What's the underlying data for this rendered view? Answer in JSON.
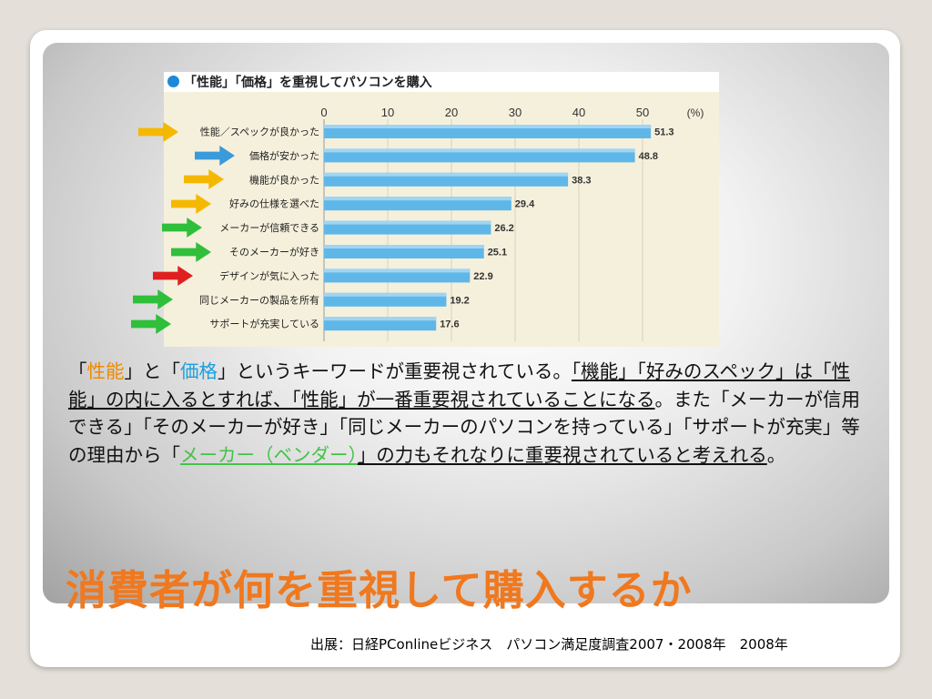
{
  "slide": {
    "title": "消費者が何を重視して購入するか",
    "source": "出展：日経PConlineビジネス　パソコン満足度調査2007・2008年　2008年"
  },
  "body_paragraph": {
    "q1_open": "「",
    "kw1": "性能",
    "q1_close_to": "」と「",
    "kw2": "価格",
    "part_a": "」というキーワードが重要視されている。",
    "part_b": "「機能」「好みのスペック」は「性能」の内に入るとすれば、「性能」が一番重要視されていることになる",
    "part_c": "。また「メーカーが信用できる」「そのメーカーが好き」「同じメーカーのパソコンを持っている」「サポートが充実」等の理由から「",
    "kw3": "メーカー（ベンダー）",
    "part_d": "」の力もそれなりに重要視されていると考えれる",
    "part_e": "。"
  },
  "colors": {
    "bar": "#5fb7e8",
    "arrow_yellow": "#f5b800",
    "arrow_blue": "#3b9ad9",
    "arrow_green": "#2fbf3a",
    "arrow_red": "#e02020"
  },
  "chart_data": {
    "type": "bar",
    "orientation": "horizontal",
    "title": "「性能」「価格」を重視してパソコンを購入",
    "unit": "(%)",
    "xlim": [
      0,
      55
    ],
    "ticks": [
      0,
      10,
      20,
      30,
      40,
      50
    ],
    "grid": true,
    "categories": [
      "性能／スペックが良かった",
      "価格が安かった",
      "機能が良かった",
      "好みの仕様を選べた",
      "メーカーが信頼できる",
      "そのメーカーが好き",
      "デザインが気に入った",
      "同じメーカーの製品を所有",
      "サポートが充実している"
    ],
    "values": [
      51.3,
      48.8,
      38.3,
      29.4,
      26.2,
      25.1,
      22.9,
      19.2,
      17.6
    ],
    "value_labels": [
      "51.3",
      "48.8",
      "38.3",
      "29.4",
      "26.2",
      "25.1",
      "22.9",
      "19.2",
      "17.6"
    ],
    "arrow_colors": [
      "arrow_yellow",
      "arrow_blue",
      "arrow_yellow",
      "arrow_yellow",
      "arrow_green",
      "arrow_green",
      "arrow_red",
      "arrow_green",
      "arrow_green"
    ]
  }
}
